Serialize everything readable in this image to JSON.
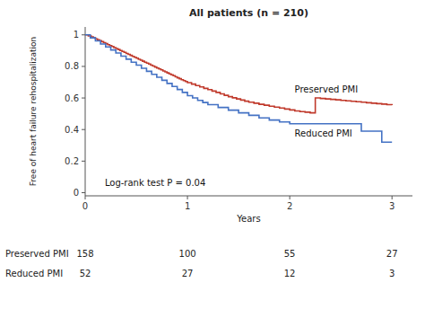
{
  "chart_data": {
    "type": "step",
    "title": "All patients (n = 210)",
    "x_label": "Years",
    "y_label": "Free of heart failure rehospitalization",
    "xlim": [
      0,
      3.2
    ],
    "ylim": [
      -0.02,
      1.05
    ],
    "xticks": [
      0,
      1,
      2,
      3
    ],
    "yticks": [
      0,
      0.2,
      0.4,
      0.6,
      0.8,
      1
    ],
    "annotations": [
      "Log-rank test P = 0.04"
    ],
    "series": [
      {
        "name": "Preserved PMI",
        "color": "#c0392b",
        "x": [
          0.0,
          0.03,
          0.06,
          0.08,
          0.1,
          0.12,
          0.14,
          0.16,
          0.18,
          0.2,
          0.22,
          0.24,
          0.26,
          0.28,
          0.3,
          0.32,
          0.34,
          0.36,
          0.38,
          0.4,
          0.42,
          0.44,
          0.46,
          0.48,
          0.5,
          0.52,
          0.54,
          0.56,
          0.58,
          0.6,
          0.62,
          0.64,
          0.66,
          0.68,
          0.7,
          0.72,
          0.74,
          0.76,
          0.78,
          0.8,
          0.82,
          0.84,
          0.86,
          0.88,
          0.9,
          0.92,
          0.94,
          0.96,
          0.98,
          1.0,
          1.04,
          1.08,
          1.12,
          1.16,
          1.2,
          1.24,
          1.28,
          1.32,
          1.36,
          1.4,
          1.44,
          1.48,
          1.52,
          1.56,
          1.6,
          1.65,
          1.7,
          1.75,
          1.8,
          1.85,
          1.9,
          1.95,
          2.0,
          2.05,
          2.1,
          2.15,
          2.2,
          2.25,
          2.3,
          2.35,
          2.4,
          2.45,
          2.5,
          2.55,
          2.6,
          2.65,
          2.7,
          2.75,
          2.8,
          2.85,
          2.9,
          2.95,
          3.0
        ],
        "values": [
          1.0,
          0.993,
          0.987,
          0.981,
          0.975,
          0.969,
          0.963,
          0.957,
          0.95,
          0.944,
          0.938,
          0.932,
          0.926,
          0.919,
          0.913,
          0.907,
          0.901,
          0.895,
          0.889,
          0.882,
          0.876,
          0.87,
          0.864,
          0.858,
          0.852,
          0.845,
          0.839,
          0.833,
          0.827,
          0.821,
          0.815,
          0.808,
          0.802,
          0.796,
          0.79,
          0.784,
          0.778,
          0.771,
          0.765,
          0.759,
          0.753,
          0.747,
          0.741,
          0.734,
          0.728,
          0.722,
          0.716,
          0.71,
          0.704,
          0.697,
          0.688,
          0.679,
          0.67,
          0.661,
          0.653,
          0.644,
          0.635,
          0.626,
          0.617,
          0.608,
          0.601,
          0.594,
          0.587,
          0.58,
          0.573,
          0.567,
          0.56,
          0.554,
          0.548,
          0.542,
          0.536,
          0.53,
          0.524,
          0.518,
          0.514,
          0.51,
          0.506,
          0.6,
          0.597,
          0.594,
          0.591,
          0.588,
          0.585,
          0.582,
          0.579,
          0.576,
          0.573,
          0.57,
          0.567,
          0.564,
          0.561,
          0.558,
          0.555
        ]
      },
      {
        "name": "Reduced PMI",
        "color": "#4472c4",
        "x": [
          0.0,
          0.05,
          0.1,
          0.15,
          0.2,
          0.25,
          0.3,
          0.35,
          0.4,
          0.45,
          0.5,
          0.55,
          0.6,
          0.65,
          0.7,
          0.75,
          0.8,
          0.85,
          0.9,
          0.95,
          1.0,
          1.05,
          1.1,
          1.15,
          1.2,
          1.3,
          1.4,
          1.5,
          1.6,
          1.7,
          1.8,
          1.9,
          2.0,
          2.1,
          2.2,
          2.3,
          2.4,
          2.5,
          2.6,
          2.7,
          2.75,
          2.8,
          2.9,
          2.95,
          3.0
        ],
        "values": [
          1.0,
          0.981,
          0.962,
          0.942,
          0.923,
          0.904,
          0.885,
          0.865,
          0.846,
          0.827,
          0.808,
          0.788,
          0.769,
          0.75,
          0.731,
          0.712,
          0.692,
          0.673,
          0.654,
          0.635,
          0.615,
          0.6,
          0.585,
          0.571,
          0.558,
          0.54,
          0.523,
          0.506,
          0.49,
          0.474,
          0.46,
          0.448,
          0.437,
          0.437,
          0.437,
          0.437,
          0.437,
          0.437,
          0.437,
          0.39,
          0.39,
          0.39,
          0.32,
          0.32,
          0.32
        ]
      }
    ],
    "risk_table": {
      "times": [
        0,
        1,
        2,
        3
      ],
      "rows": [
        {
          "name": "Preserved PMI",
          "counts": [
            158,
            100,
            55,
            27
          ]
        },
        {
          "name": "Reduced PMI",
          "counts": [
            52,
            27,
            12,
            3
          ]
        }
      ]
    }
  }
}
